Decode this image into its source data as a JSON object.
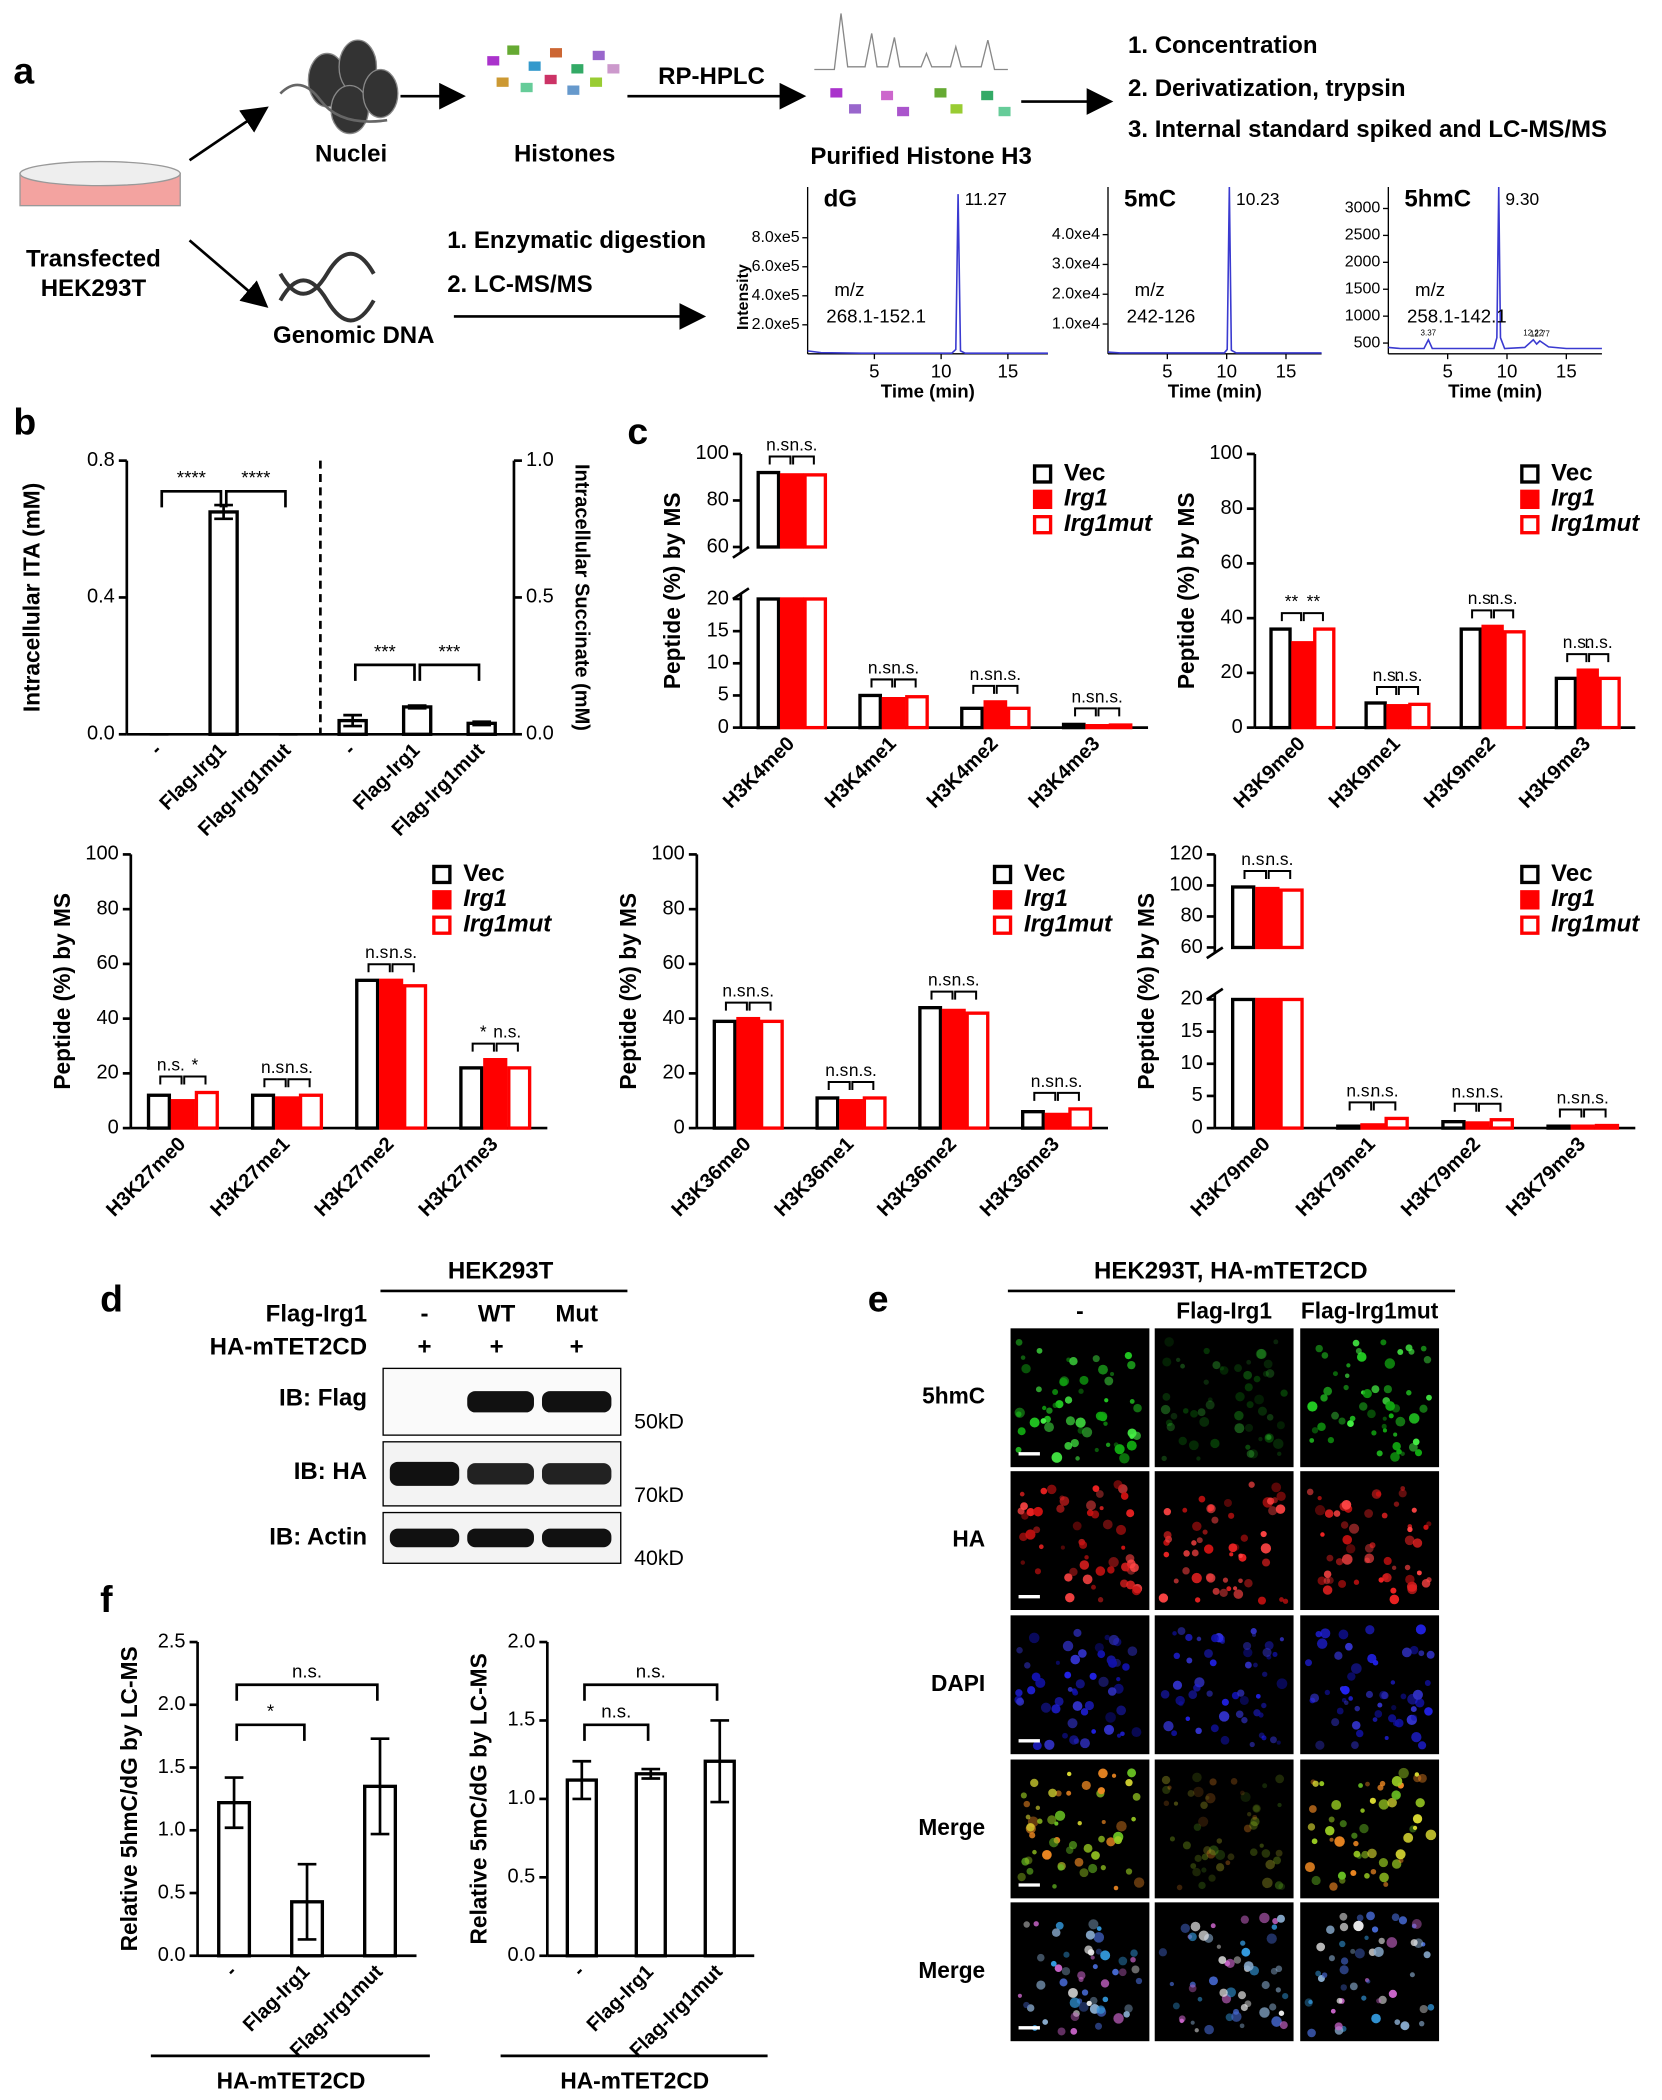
{
  "panel_labels": [
    "a",
    "b",
    "c",
    "d",
    "e",
    "f"
  ],
  "workflow": {
    "cells": [
      "Transfected",
      "HEK293T"
    ],
    "nuclei": "Nuclei",
    "histones": "Histones",
    "rp_hplc": "RP-HPLC",
    "purified": "Purified Histone H3",
    "steps": [
      "1. Concentration",
      "2. Derivatization, trypsin",
      "3. Internal standard spiked and LC-MS/MS"
    ],
    "genomic": "Genomic DNA",
    "dna_steps": [
      "1. Enzymatic digestion",
      "2. LC-MS/MS"
    ]
  },
  "chart_data": [
    {
      "type": "line",
      "title": "dG",
      "xlabel": "Time (min)",
      "ylabel": "Intensity",
      "mz": "m/z",
      "transition": "268.1-152.1",
      "color": "#3a3ad0",
      "x": [
        0,
        1,
        4,
        8,
        10.8,
        11.1,
        11.27,
        11.45,
        11.8,
        15,
        18
      ],
      "y": [
        20000,
        8000,
        5000,
        5000,
        5000,
        30000,
        1100000,
        20000,
        5000,
        5000,
        5000
      ],
      "xlim": [
        0,
        18
      ],
      "xticks": [
        5,
        10,
        15
      ],
      "ylim": [
        0,
        1150000
      ],
      "yticks": [
        {
          "value": 200000,
          "label": "2.0xe5"
        },
        {
          "value": 400000,
          "label": "4.0xe5"
        },
        {
          "value": 600000,
          "label": "6.0xe5"
        },
        {
          "value": 800000,
          "label": "8.0xe5"
        }
      ],
      "peaks": [
        11.27
      ]
    },
    {
      "type": "line",
      "title": "5mC",
      "xlabel": "Time (min)",
      "mz": "m/z",
      "transition": "242-126",
      "color": "#3a3ad0",
      "x": [
        0,
        1,
        4,
        8,
        9.8,
        10.05,
        10.23,
        10.4,
        10.8,
        15,
        18
      ],
      "y": [
        600,
        300,
        300,
        300,
        300,
        1500,
        56000,
        1200,
        300,
        300,
        300
      ],
      "xlim": [
        0,
        18
      ],
      "xticks": [
        5,
        10,
        15
      ],
      "ylim": [
        0,
        56000
      ],
      "yticks": [
        {
          "value": 10000,
          "label": "1.0xe4"
        },
        {
          "value": 20000,
          "label": "2.0xe4"
        },
        {
          "value": 30000,
          "label": "3.0xe4"
        },
        {
          "value": 40000,
          "label": "4.0xe4"
        }
      ],
      "peaks": [
        10.23
      ]
    },
    {
      "type": "line",
      "title": "5hmC",
      "xlabel": "Time (min)",
      "mz": "m/z",
      "transition": "258.1-142.1",
      "color": "#3a3ad0",
      "x": [
        0,
        1,
        3,
        3.37,
        3.7,
        6,
        8.9,
        9.15,
        9.3,
        9.45,
        9.8,
        11.5,
        12.22,
        12.5,
        12.77,
        13.5,
        15,
        18
      ],
      "y": [
        420,
        400,
        400,
        560,
        400,
        400,
        400,
        600,
        3400,
        600,
        400,
        420,
        560,
        480,
        540,
        430,
        400,
        400
      ],
      "xlim": [
        0,
        18
      ],
      "xticks": [
        5,
        10,
        15
      ],
      "ylim": [
        300,
        3400
      ],
      "yticks": [
        500,
        1000,
        1500,
        2000,
        2500,
        3000
      ],
      "peaks": [
        {
          "value": 9.3,
          "label": "9.30"
        },
        3.37,
        12.22,
        12.77
      ]
    },
    {
      "type": "bar",
      "ylabel": "Intracellular ITA (mM)",
      "y2label": "Intracellular Succinate (mM)",
      "categories": [
        "-",
        "Flag-Irg1",
        "Flag-Irg1mut",
        "-",
        "Flag-Irg1",
        "Flag-Irg1mut"
      ],
      "series": [
        {
          "color": "#000000",
          "filled": false,
          "values": [
            0,
            0.65,
            0,
            null,
            null,
            null
          ],
          "errors": [
            0,
            0.02,
            0,
            null,
            null,
            null
          ]
        },
        {
          "color": "#000000",
          "filled": false,
          "axis": "y2",
          "values": [
            null,
            null,
            null,
            0.05,
            0.1,
            0.04
          ],
          "errors": [
            null,
            null,
            null,
            0.02,
            0.005,
            0.006
          ]
        }
      ],
      "ylim": [
        0,
        0.8
      ],
      "yticks": [
        {
          "value": 0,
          "label": "0.0"
        },
        {
          "value": 0.4,
          "label": "0.4"
        },
        {
          "value": 0.8,
          "label": "0.8"
        }
      ],
      "y2lim": [
        0,
        1
      ],
      "y2ticks": [
        {
          "value": 0,
          "label": "0.0"
        },
        {
          "value": 0.5,
          "label": "0.5"
        },
        {
          "value": 1,
          "label": "1.0"
        }
      ],
      "comparisons": [
        "****",
        "****",
        "***",
        "***"
      ]
    },
    {
      "type": "bar",
      "ylabel": "Peptide (%) by MS",
      "categories": [
        "H3K4me0",
        "H3K4me1",
        "H3K4me2",
        "H3K4me3"
      ],
      "series": [
        {
          "name": "Vec",
          "color": "#000000",
          "filled": false,
          "values": [
            92,
            5,
            3,
            0.5
          ]
        },
        {
          "name": "Irg1",
          "color": "#ff0000",
          "filled": true,
          "values": [
            91,
            4.5,
            4,
            0.3
          ]
        },
        {
          "name": "Irg1mut",
          "color": "#ff0000",
          "filled": false,
          "values": [
            91,
            4.8,
            3,
            0.4
          ]
        }
      ],
      "ylim": [
        0,
        100
      ],
      "axis_break": [
        20,
        60
      ],
      "yticks": [
        0,
        5,
        10,
        15,
        20,
        60,
        80,
        100
      ],
      "legend": "upper right",
      "comparisons": [
        [
          "n.s.",
          "n.s."
        ],
        [
          "n.s.",
          "n.s."
        ],
        [
          "n.s.",
          "n.s."
        ],
        [
          "n.s.",
          "n.s."
        ]
      ]
    },
    {
      "type": "bar",
      "ylabel": "Peptide (%) by MS",
      "categories": [
        "H3K9me0",
        "H3K9me1",
        "H3K9me2",
        "H3K9me3"
      ],
      "series": [
        {
          "name": "Vec",
          "color": "#000000",
          "filled": false,
          "values": [
            36,
            9,
            36,
            18
          ]
        },
        {
          "name": "Irg1",
          "color": "#ff0000",
          "filled": true,
          "values": [
            31,
            8,
            37,
            21
          ]
        },
        {
          "name": "Irg1mut",
          "color": "#ff0000",
          "filled": false,
          "values": [
            36,
            8.5,
            35,
            18
          ]
        }
      ],
      "ylim": [
        0,
        100
      ],
      "yticks": [
        0,
        20,
        40,
        60,
        80,
        100
      ],
      "legend": "upper right",
      "comparisons": [
        [
          "**",
          "**"
        ],
        [
          "n.s.",
          "n.s."
        ],
        [
          "n.s.",
          "n.s."
        ],
        [
          "n.s.",
          "n.s."
        ]
      ]
    },
    {
      "type": "bar",
      "ylabel": "Peptide (%) by MS",
      "categories": [
        "H3K27me0",
        "H3K27me1",
        "H3K27me2",
        "H3K27me3"
      ],
      "series": [
        {
          "name": "Vec",
          "color": "#000000",
          "filled": false,
          "values": [
            12,
            12,
            54,
            22
          ]
        },
        {
          "name": "Irg1",
          "color": "#ff0000",
          "filled": true,
          "values": [
            10,
            11,
            54,
            25
          ]
        },
        {
          "name": "Irg1mut",
          "color": "#ff0000",
          "filled": false,
          "values": [
            13,
            12,
            52,
            22
          ]
        }
      ],
      "ylim": [
        0,
        100
      ],
      "yticks": [
        0,
        20,
        40,
        60,
        80,
        100
      ],
      "legend": "upper right",
      "comparisons": [
        [
          "n.s.",
          "*"
        ],
        [
          "n.s.",
          "n.s."
        ],
        [
          "n.s.",
          "n.s."
        ],
        [
          "*",
          "n.s."
        ]
      ]
    },
    {
      "type": "bar",
      "ylabel": "Peptide (%) by MS",
      "categories": [
        "H3K36me0",
        "H3K36me1",
        "H3K36me2",
        "H3K36me3"
      ],
      "series": [
        {
          "name": "Vec",
          "color": "#000000",
          "filled": false,
          "values": [
            39,
            11,
            44,
            6
          ]
        },
        {
          "name": "Irg1",
          "color": "#ff0000",
          "filled": true,
          "values": [
            40,
            10,
            43,
            5
          ]
        },
        {
          "name": "Irg1mut",
          "color": "#ff0000",
          "filled": false,
          "values": [
            39,
            11,
            42,
            7
          ]
        }
      ],
      "ylim": [
        0,
        100
      ],
      "yticks": [
        0,
        20,
        40,
        60,
        80,
        100
      ],
      "legend": "upper right",
      "comparisons": [
        [
          "n.s.",
          "n.s."
        ],
        [
          "n.s.",
          "n.s."
        ],
        [
          "n.s.",
          "n.s."
        ],
        [
          "n.s.",
          "n.s."
        ]
      ]
    },
    {
      "type": "bar",
      "ylabel": "Peptide (%) by MS",
      "categories": [
        "H3K79me0",
        "H3K79me1",
        "H3K79me2",
        "H3K79me3"
      ],
      "series": [
        {
          "name": "Vec",
          "color": "#000000",
          "filled": false,
          "values": [
            99,
            0.3,
            1,
            0.3
          ]
        },
        {
          "name": "Irg1",
          "color": "#ff0000",
          "filled": true,
          "values": [
            98,
            0.5,
            0.8,
            0.3
          ]
        },
        {
          "name": "Irg1mut",
          "color": "#ff0000",
          "filled": false,
          "values": [
            97,
            1.5,
            1.3,
            0.4
          ]
        }
      ],
      "ylim": [
        0,
        120
      ],
      "axis_break": [
        20,
        60
      ],
      "yticks": [
        0,
        5,
        10,
        15,
        20,
        60,
        80,
        100,
        120
      ],
      "legend": "upper right",
      "comparisons": [
        [
          "n.s.",
          "n.s."
        ],
        [
          "n.s.",
          "n.s."
        ],
        [
          "n.s.",
          "n.s."
        ],
        [
          "n.s.",
          "n.s."
        ]
      ]
    },
    {
      "type": "bar",
      "ylabel": "Relative 5hmC/dG by LC-MS",
      "xlabel": "HA-mTET2CD",
      "categories": [
        "-",
        "Flag-Irg1",
        "Flag-Irg1mut"
      ],
      "series": [
        {
          "color": "#000000",
          "filled": false,
          "values": [
            1.22,
            0.43,
            1.35
          ],
          "errors": [
            0.2,
            0.3,
            0.38
          ]
        }
      ],
      "ylim": [
        0,
        2.5
      ],
      "yticks": [
        {
          "value": 0,
          "label": "0.0"
        },
        {
          "value": 0.5,
          "label": "0.5"
        },
        {
          "value": 1,
          "label": "1.0"
        },
        {
          "value": 1.5,
          "label": "1.5"
        },
        {
          "value": 2,
          "label": "2.0"
        },
        {
          "value": 2.5,
          "label": "2.5"
        }
      ],
      "comparisons": [
        "*",
        "n.s."
      ]
    },
    {
      "type": "bar",
      "ylabel": "Relative 5mC/dG by LC-MS",
      "xlabel": "HA-mTET2CD",
      "categories": [
        "-",
        "Flag-Irg1",
        "Flag-Irg1mut"
      ],
      "series": [
        {
          "color": "#000000",
          "filled": false,
          "values": [
            1.12,
            1.16,
            1.24
          ],
          "errors": [
            0.12,
            0.03,
            0.26
          ]
        }
      ],
      "ylim": [
        0,
        2
      ],
      "yticks": [
        {
          "value": 0,
          "label": "0.0"
        },
        {
          "value": 0.5,
          "label": "0.5"
        },
        {
          "value": 1,
          "label": "1.0"
        },
        {
          "value": 1.5,
          "label": "1.5"
        },
        {
          "value": 2,
          "label": "2.0"
        }
      ],
      "comparisons": [
        "n.s.",
        "n.s."
      ]
    }
  ],
  "western": {
    "title": "HEK293T",
    "row_labels": [
      "Flag-Irg1",
      "HA-mTET2CD"
    ],
    "columns": [
      [
        "-",
        "WT",
        "Mut"
      ],
      [
        "+",
        "+",
        "+"
      ]
    ],
    "blots": [
      "IB: Flag",
      "IB: HA",
      "IB: Actin"
    ],
    "markers": [
      "50kD",
      "70kD",
      "40kD"
    ]
  },
  "imaging": {
    "title": "HEK293T, HA-mTET2CD",
    "columns": [
      "-",
      "Flag-Irg1",
      "Flag-Irg1mut"
    ],
    "rows": [
      "5hmC",
      "HA",
      "DAPI",
      "Merge",
      "Merge"
    ],
    "row_colors": [
      "#22b522",
      "#e82020",
      "#1e6fd0",
      "#000000",
      "#000000"
    ]
  }
}
